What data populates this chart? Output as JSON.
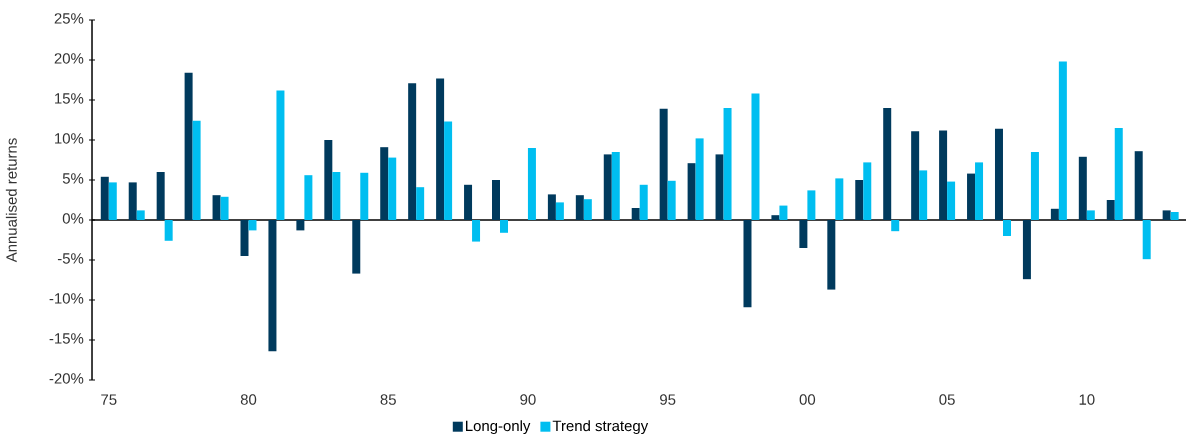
{
  "chart_data": {
    "type": "bar",
    "ylabel": "Annualised returns",
    "categories": [
      "75",
      null,
      null,
      null,
      null,
      "80",
      null,
      null,
      null,
      null,
      "85",
      null,
      null,
      null,
      null,
      "90",
      null,
      null,
      null,
      null,
      "95",
      null,
      null,
      null,
      null,
      "00",
      null,
      null,
      null,
      null,
      "05",
      null,
      null,
      null,
      null,
      "10",
      null,
      null,
      null
    ],
    "series": [
      {
        "name": "Long-only",
        "color": "#003a5d",
        "values": [
          5.4,
          4.7,
          6.0,
          18.4,
          3.1,
          -4.5,
          -16.4,
          -1.3,
          10.0,
          -6.7,
          9.1,
          17.1,
          17.7,
          4.4,
          5.0,
          0,
          3.2,
          3.1,
          8.2,
          1.5,
          13.9,
          7.1,
          8.2,
          -10.9,
          0.6,
          -3.5,
          -8.7,
          5.0,
          14.0,
          11.1,
          11.2,
          5.8,
          11.4,
          -7.4,
          1.4,
          7.9,
          2.5,
          8.6,
          1.2
        ]
      },
      {
        "name": "Trend strategy",
        "color": "#00bef0",
        "values": [
          4.7,
          1.2,
          -2.6,
          12.4,
          2.9,
          -1.3,
          16.2,
          5.6,
          6.0,
          5.9,
          7.8,
          4.1,
          12.3,
          -2.7,
          -1.6,
          9.0,
          2.2,
          2.6,
          8.5,
          4.4,
          4.9,
          10.2,
          14.0,
          15.8,
          1.8,
          3.7,
          5.2,
          7.2,
          -1.4,
          6.2,
          4.8,
          7.2,
          -2.0,
          8.5,
          19.8,
          1.2,
          11.5,
          -4.9,
          1.0
        ]
      }
    ],
    "ylim": [
      -20,
      25
    ],
    "yticks": [
      {
        "value": -20,
        "label": "-20%"
      },
      {
        "value": -15,
        "label": "-15%"
      },
      {
        "value": -10,
        "label": "-10%"
      },
      {
        "value": -5,
        "label": "-5%"
      },
      {
        "value": 0,
        "label": "0%"
      },
      {
        "value": 5,
        "label": "5%"
      },
      {
        "value": 10,
        "label": "10%"
      },
      {
        "value": 15,
        "label": "15%"
      },
      {
        "value": 20,
        "label": "20%"
      },
      {
        "value": 25,
        "label": "25%"
      }
    ],
    "legend": "bottom"
  }
}
